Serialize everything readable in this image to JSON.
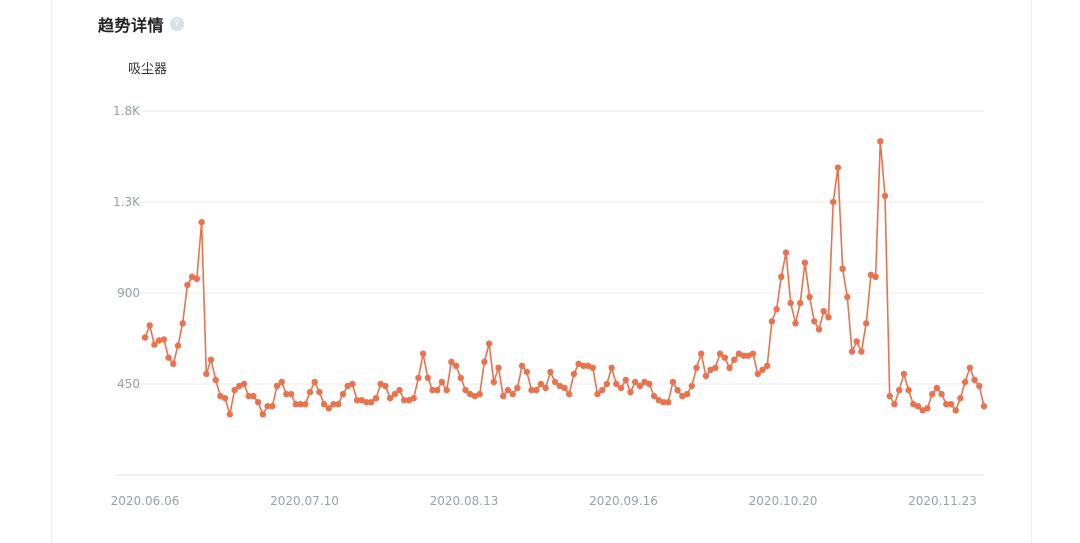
{
  "header": {
    "title": "趋势详情",
    "help_icon": "question-circle-icon"
  },
  "colors": {
    "series": "#e8734f",
    "grid": "#ebebeb",
    "axis_text": "#9aa1a9"
  },
  "chart_data": {
    "type": "line",
    "series_label": "吸尘器",
    "y_ticks": [
      {
        "label": "1.8K",
        "value": 1800
      },
      {
        "label": "1.3K",
        "value": 1350
      },
      {
        "label": "900",
        "value": 900
      },
      {
        "label": "450",
        "value": 450
      }
    ],
    "ylim": [
      0,
      1800
    ],
    "x_tick_labels": [
      "2020.06.06",
      "2020.07.10",
      "2020.08.13",
      "2020.09.16",
      "2020.10.20",
      "2020.11.23"
    ],
    "grid": true,
    "series": [
      {
        "values": [
          680,
          740,
          645,
          665,
          670,
          580,
          550,
          640,
          750,
          940,
          980,
          970,
          1250,
          500,
          570,
          470,
          390,
          380,
          300,
          420,
          440,
          450,
          390,
          390,
          360,
          300,
          340,
          340,
          440,
          460,
          400,
          400,
          350,
          350,
          350,
          410,
          460,
          410,
          350,
          330,
          350,
          350,
          400,
          440,
          450,
          370,
          370,
          360,
          360,
          380,
          450,
          440,
          380,
          400,
          420,
          370,
          370,
          380,
          480,
          600,
          480,
          420,
          420,
          460,
          420,
          560,
          540,
          480,
          420,
          400,
          390,
          400,
          560,
          650,
          460,
          530,
          390,
          420,
          400,
          430,
          540,
          510,
          420,
          420,
          450,
          430,
          510,
          460,
          440,
          430,
          400,
          500,
          550,
          540,
          540,
          530,
          400,
          420,
          450,
          530,
          450,
          430,
          470,
          410,
          460,
          440,
          460,
          450,
          390,
          370,
          360,
          360,
          460,
          420,
          390,
          400,
          440,
          530,
          600,
          490,
          520,
          530,
          600,
          580,
          530,
          570,
          600,
          590,
          590,
          600,
          500,
          520,
          540,
          760,
          820,
          980,
          1100,
          850,
          750,
          850,
          1050,
          880,
          760,
          720,
          810,
          780,
          1350,
          1520,
          1020,
          880,
          610,
          660,
          610,
          750,
          990,
          980,
          1650,
          1380,
          390,
          350,
          420,
          500,
          420,
          350,
          340,
          320,
          330,
          400,
          430,
          400,
          350,
          350,
          320,
          380,
          460,
          530,
          470,
          440,
          340
        ]
      }
    ]
  }
}
